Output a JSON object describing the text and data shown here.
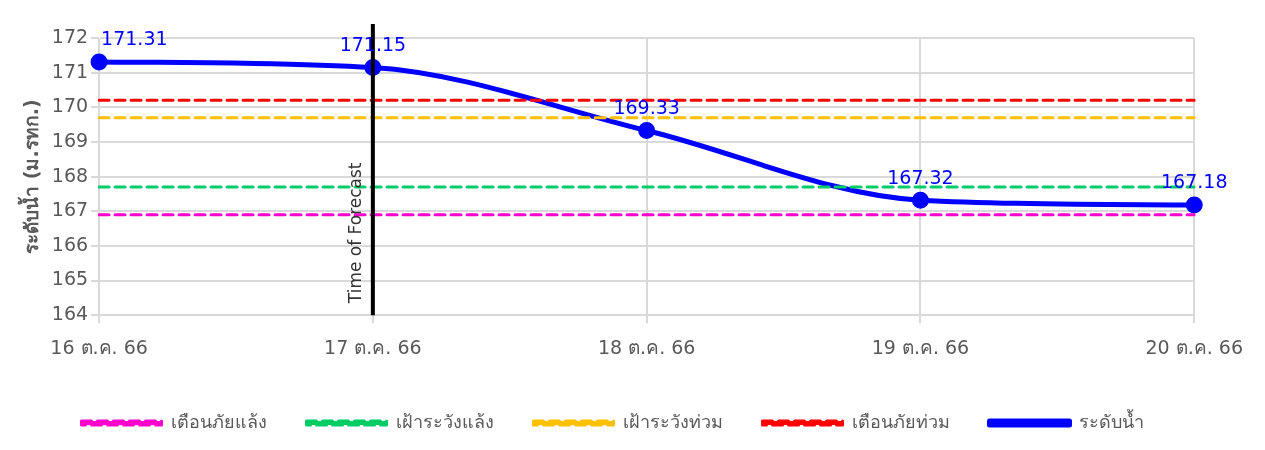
{
  "chart_data": {
    "type": "line",
    "ylabel": "ระดับน้ำ (ม.รทก.)",
    "categories": [
      "16 ต.ค. 66",
      "17 ต.ค. 66",
      "18 ต.ค. 66",
      "19 ต.ค. 66",
      "20 ต.ค. 66"
    ],
    "series": [
      {
        "name": "เตือนภัยแล้ง",
        "color": "#ff00cc",
        "values": [
          166.9,
          166.9,
          166.9,
          166.9,
          166.9
        ],
        "line_style": "dashed",
        "marker": "none"
      },
      {
        "name": "เฝ้าระวังแล้ง",
        "color": "#00cc66",
        "values": [
          167.7,
          167.7,
          167.7,
          167.7,
          167.7
        ],
        "line_style": "dashed",
        "marker": "none"
      },
      {
        "name": "เฝ้าระวังท่วม",
        "color": "#ffc000",
        "values": [
          169.7,
          169.7,
          169.7,
          169.7,
          169.7
        ],
        "line_style": "dashed",
        "marker": "none"
      },
      {
        "name": "เตือนภัยท่วม",
        "color": "#ff0000",
        "values": [
          170.2,
          170.2,
          170.2,
          170.2,
          170.2
        ],
        "line_style": "dashed",
        "marker": "none"
      },
      {
        "name": "ระดับน้ำ",
        "color": "#0000ff",
        "values": [
          171.31,
          171.15,
          169.33,
          167.32,
          167.18
        ],
        "line_style": "solid",
        "marker": "circle",
        "data_labels": true
      }
    ],
    "ylim": [
      164,
      172
    ],
    "yticks": [
      164,
      165,
      166,
      167,
      168,
      169,
      170,
      171,
      172
    ],
    "ref_lines": [
      {
        "axis": "x",
        "value": "17 ต.ค. 66",
        "label": "Time of Forecast",
        "color": "#000000"
      }
    ],
    "grid": true,
    "legend": "bottom"
  }
}
